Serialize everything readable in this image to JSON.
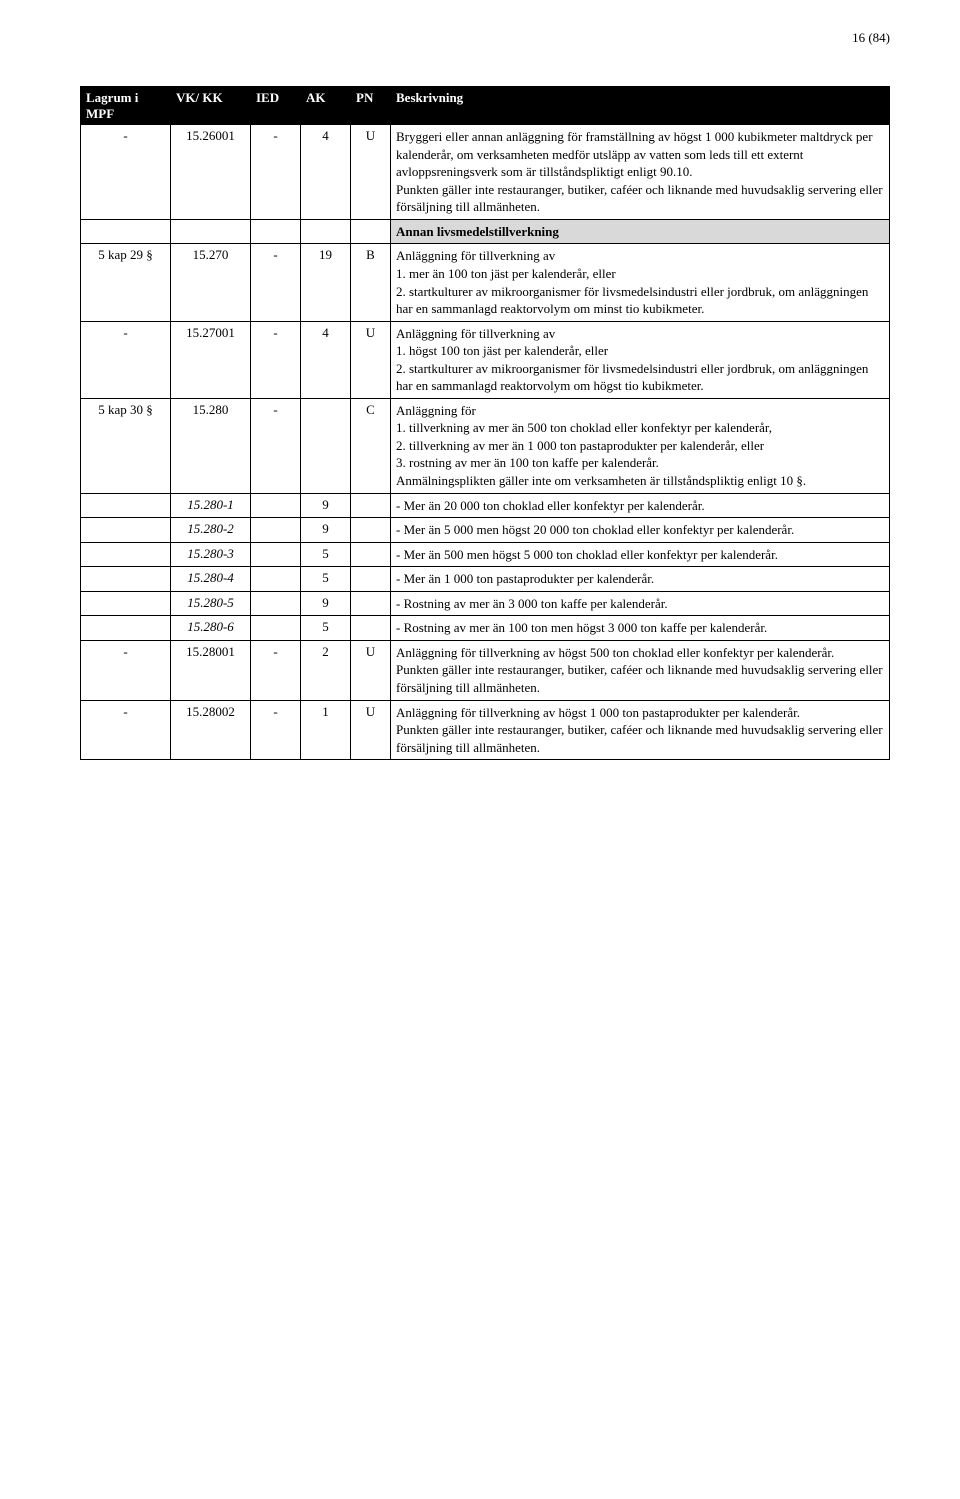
{
  "page_number": "16 (84)",
  "headers": {
    "lagrum": "Lagrum\ni MPF",
    "vk": "VK/\nKK",
    "ied": "IED",
    "ak": "AK",
    "pn": "PN",
    "besk": "Beskrivning"
  },
  "rows": [
    {
      "c1": "-",
      "c2": "15.26001",
      "c3": "-",
      "c4": "4",
      "c5": "U",
      "c6": "Bryggeri eller annan anläggning för framställning av högst 1 000 kubikmeter maltdryck per kalenderår, om verksamheten medför utsläpp av vatten som leds till ett externt avloppsreningsverk som är tillståndspliktigt enligt 90.10.\nPunkten gäller inte restauranger, butiker, caféer och liknande med huvudsaklig servering eller försäljning till allmänheten."
    },
    {
      "section": true,
      "c6": "Annan livsmedelstillverkning"
    },
    {
      "c1": "5 kap 29 §",
      "c2": "15.270",
      "c3": "-",
      "c4": "19",
      "c5": "B",
      "c6": "Anläggning för tillverkning av\n1. mer än 100 ton jäst per kalenderår, eller\n2. startkulturer av mikroorganismer för livsmedelsindustri eller jordbruk, om anläggningen har en sammanlagd reaktorvolym om minst tio kubikmeter."
    },
    {
      "c1": "-",
      "c2": "15.27001",
      "c3": "-",
      "c4": "4",
      "c5": "U",
      "c6": "Anläggning för tillverkning av\n1. högst 100 ton jäst per kalenderår, eller\n2. startkulturer av mikroorganismer för livsmedelsindustri eller jordbruk, om anläggningen har en sammanlagd reaktorvolym om högst tio kubikmeter."
    },
    {
      "c1": "5 kap 30 §",
      "c2": "15.280",
      "c3": "-",
      "c4": "",
      "c5": "C",
      "c6": "Anläggning för\n1. tillverkning av mer än 500 ton choklad eller konfektyr per kalenderår,\n2. tillverkning av mer än 1 000 ton pastaprodukter per kalenderår, eller\n3. rostning av mer än 100 ton kaffe per kalenderår.\nAnmälningsplikten gäller inte om verksamheten är tillståndspliktig enligt 10 §."
    },
    {
      "c1": "",
      "c2": "15.280-1",
      "c2_italic": true,
      "c3": "",
      "c4": "9",
      "c5": "",
      "c6": "- Mer än 20 000 ton choklad eller konfektyr per kalenderår."
    },
    {
      "c1": "",
      "c2": "15.280-2",
      "c2_italic": true,
      "c3": "",
      "c4": "9",
      "c5": "",
      "c6": "- Mer än 5 000 men högst 20 000 ton choklad eller konfektyr per kalenderår."
    },
    {
      "c1": "",
      "c2": "15.280-3",
      "c2_italic": true,
      "c3": "",
      "c4": "5",
      "c5": "",
      "c6": "- Mer än 500 men högst 5 000 ton choklad eller konfektyr per kalenderår."
    },
    {
      "c1": "",
      "c2": "15.280-4",
      "c2_italic": true,
      "c3": "",
      "c4": "5",
      "c5": "",
      "c6": "- Mer än 1 000 ton pastaprodukter per kalenderår."
    },
    {
      "c1": "",
      "c2": "15.280-5",
      "c2_italic": true,
      "c3": "",
      "c4": "9",
      "c5": "",
      "c6": "- Rostning av mer än 3 000 ton kaffe per kalenderår."
    },
    {
      "c1": "",
      "c2": "15.280-6",
      "c2_italic": true,
      "c3": "",
      "c4": "5",
      "c5": "",
      "c6": "- Rostning av mer än 100 ton men högst 3 000 ton kaffe per kalenderår."
    },
    {
      "c1": "-",
      "c2": "15.28001",
      "c3": "-",
      "c4": "2",
      "c5": "U",
      "c6": "Anläggning för tillverkning av högst 500 ton choklad eller konfektyr per kalenderår.\nPunkten gäller inte restauranger, butiker, caféer och liknande med huvudsaklig servering eller försäljning till allmänheten."
    },
    {
      "c1": "-",
      "c2": "15.28002",
      "c3": "-",
      "c4": "1",
      "c5": "U",
      "c6": "Anläggning för tillverkning av högst 1 000 ton pastaprodukter per kalenderår.\nPunkten gäller inte restauranger, butiker, caféer och liknande med huvudsaklig servering eller försäljning till allmänheten."
    }
  ]
}
